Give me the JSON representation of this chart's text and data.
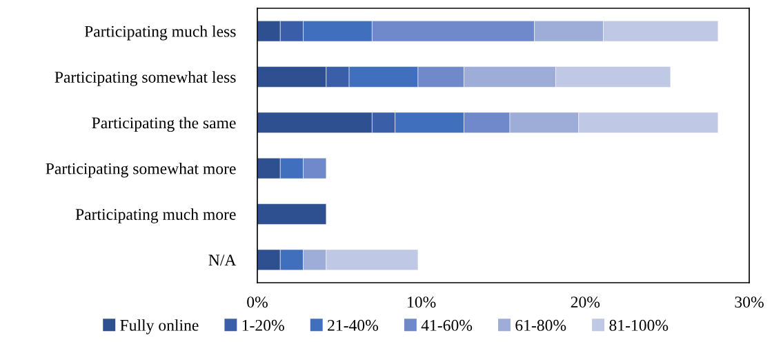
{
  "chart_data": {
    "type": "bar",
    "orientation": "horizontal",
    "stacked": true,
    "categories": [
      "Participating much less",
      "Participating somewhat less",
      "Participating the same",
      "Participating somewhat more",
      "Participating much more",
      "N/A"
    ],
    "series": [
      {
        "name": "Fully online",
        "color": "#2e5090",
        "values": [
          1.4,
          4.2,
          7.0,
          1.4,
          4.2,
          1.4
        ]
      },
      {
        "name": "1-20%",
        "color": "#3a5fa8",
        "values": [
          1.4,
          1.4,
          1.4,
          0,
          0,
          0
        ]
      },
      {
        "name": "21-40%",
        "color": "#3f6fbd",
        "values": [
          4.2,
          4.2,
          4.2,
          1.4,
          0,
          1.4
        ]
      },
      {
        "name": "41-60%",
        "color": "#6f89cb",
        "values": [
          9.9,
          2.8,
          2.8,
          1.4,
          0,
          0
        ]
      },
      {
        "name": "61-80%",
        "color": "#9eadd8",
        "values": [
          4.2,
          5.6,
          4.2,
          0,
          0,
          1.4
        ]
      },
      {
        "name": "81-100%",
        "color": "#bfc8e4",
        "values": [
          7.0,
          7.0,
          8.5,
          0,
          0,
          5.6
        ]
      }
    ],
    "xlim": [
      0,
      30
    ],
    "xticks": [
      {
        "value": 0,
        "label": "0%"
      },
      {
        "value": 10,
        "label": "10%"
      },
      {
        "value": 20,
        "label": "20%"
      },
      {
        "value": 30,
        "label": "30%"
      }
    ],
    "grid": false,
    "legend": "bottom"
  }
}
